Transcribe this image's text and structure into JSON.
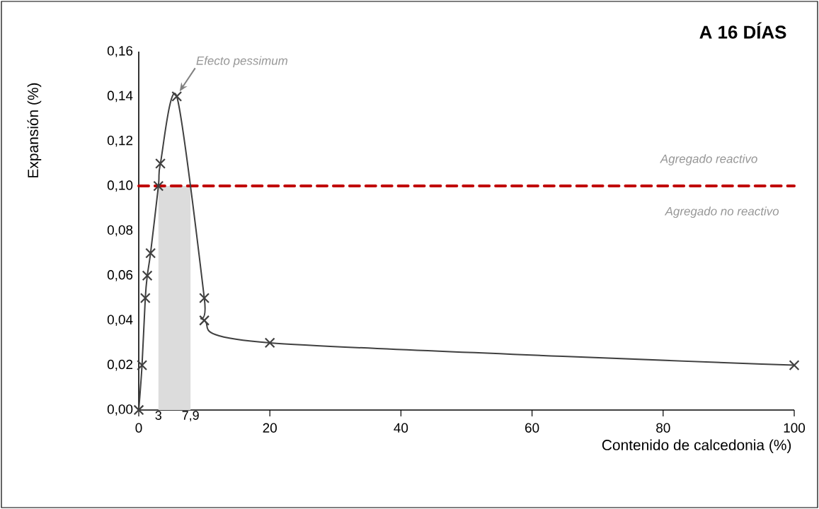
{
  "chart_data": {
    "type": "line",
    "title": "A  16 DÍAS",
    "xlabel": "Contenido de calcedonia (%)",
    "ylabel": "Expansión (%)",
    "x": [
      0,
      0.5,
      1,
      1.3,
      1.8,
      3,
      3.3,
      5.8,
      10,
      10,
      20,
      100
    ],
    "series": [
      {
        "color": "#404040",
        "values": [
          0,
          0.02,
          0.05,
          0.06,
          0.07,
          0.1,
          0.11,
          0.14,
          0.05,
          0.04,
          0.03,
          0.02
        ]
      }
    ],
    "marker": "cross",
    "grid": false,
    "xlim": [
      0,
      100
    ],
    "xticks": [
      0,
      20,
      40,
      60,
      80,
      100
    ],
    "ylim": [
      0,
      0.16
    ],
    "yticks": [
      {
        "value": 0,
        "label": "0,00"
      },
      {
        "value": 0.02,
        "label": "0,02"
      },
      {
        "value": 0.04,
        "label": "0,04"
      },
      {
        "value": 0.06,
        "label": "0,06"
      },
      {
        "value": 0.08,
        "label": "0,08"
      },
      {
        "value": 0.1,
        "label": "0,10"
      },
      {
        "value": 0.12,
        "label": "0,12"
      },
      {
        "value": 0.14,
        "label": "0,14"
      },
      {
        "value": 0.16,
        "label": "0,16"
      }
    ],
    "ref_lines": [
      {
        "axis": "y",
        "value": 0.1,
        "color": "#c00000",
        "line_style": "dashed"
      }
    ],
    "bands": [
      {
        "axis": "x",
        "from": 3,
        "to": 7.9,
        "color": "#dcdcdc"
      }
    ],
    "annotations": [
      {
        "text": "Efecto pessimum",
        "x": 5.8,
        "y": 0.14
      },
      "Agregado reactivo",
      "Agregado no reactivo",
      {
        "text": "3",
        "x": 3,
        "y": 0
      },
      {
        "text": "7,9",
        "x": 7.9,
        "y": 0
      }
    ]
  }
}
